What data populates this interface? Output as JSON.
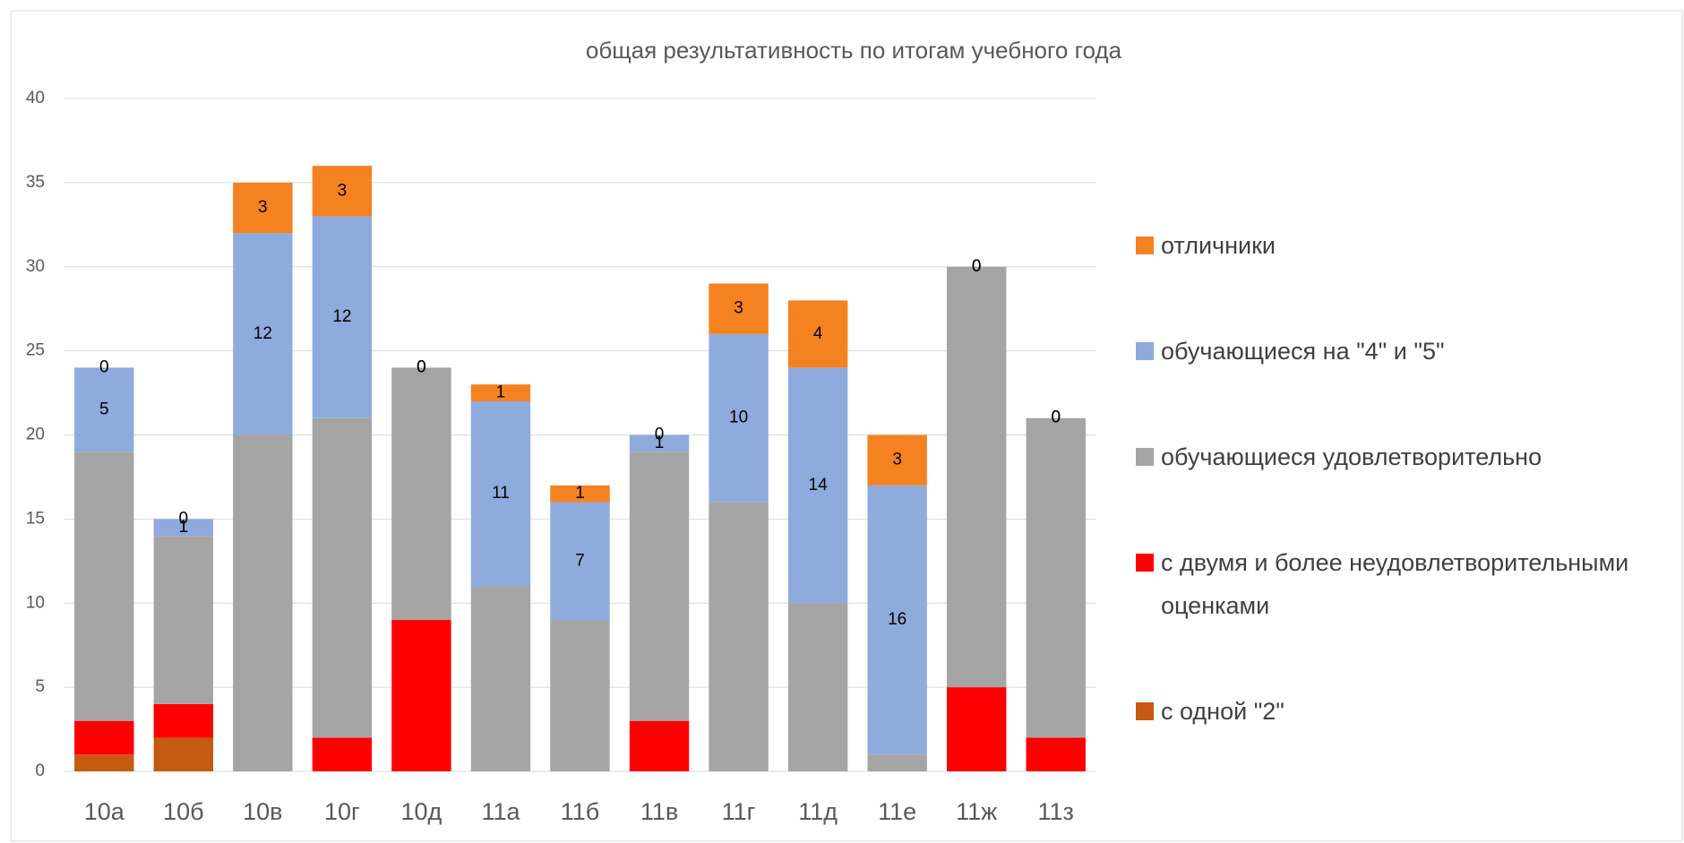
{
  "chart_data": {
    "type": "stacked_bar",
    "title": "общая результативность по итогам учебного года",
    "categories": [
      "10а",
      "10б",
      "10в",
      "10г",
      "10д",
      "11а",
      "11б",
      "11в",
      "11г",
      "11д",
      "11е",
      "11ж",
      "11з"
    ],
    "series": [
      {
        "name": "с одной \"2\"",
        "color": "#c55a11",
        "values": [
          1,
          2,
          0,
          0,
          0,
          0,
          0,
          0,
          0,
          0,
          0,
          0,
          0
        ],
        "show_labels": false
      },
      {
        "name": "с двумя и более неудовлетворительными оценками",
        "color": "#ff0000",
        "values": [
          2,
          2,
          0,
          2,
          9,
          0,
          0,
          3,
          0,
          0,
          0,
          5,
          2
        ],
        "show_labels": false
      },
      {
        "name": "обучающиеся удовлетворительно",
        "color": "#a5a5a5",
        "values": [
          16,
          10,
          20,
          19,
          15,
          11,
          9,
          16,
          16,
          10,
          1,
          25,
          19
        ],
        "show_labels": false
      },
      {
        "name": "обучающиеся на \"4\" и \"5\"",
        "color": "#8faadc",
        "values": [
          5,
          1,
          12,
          12,
          0,
          11,
          7,
          1,
          10,
          14,
          16,
          0,
          0
        ],
        "show_labels": true
      },
      {
        "name": "отличники",
        "color": "#f58220",
        "values": [
          0,
          0,
          3,
          3,
          0,
          1,
          1,
          0,
          3,
          4,
          3,
          0,
          0
        ],
        "show_labels": true
      }
    ],
    "ylim": [
      0,
      40
    ],
    "yticks": [
      0,
      5,
      10,
      15,
      20,
      25,
      30,
      35,
      40
    ],
    "grid": true,
    "legend": "right"
  }
}
